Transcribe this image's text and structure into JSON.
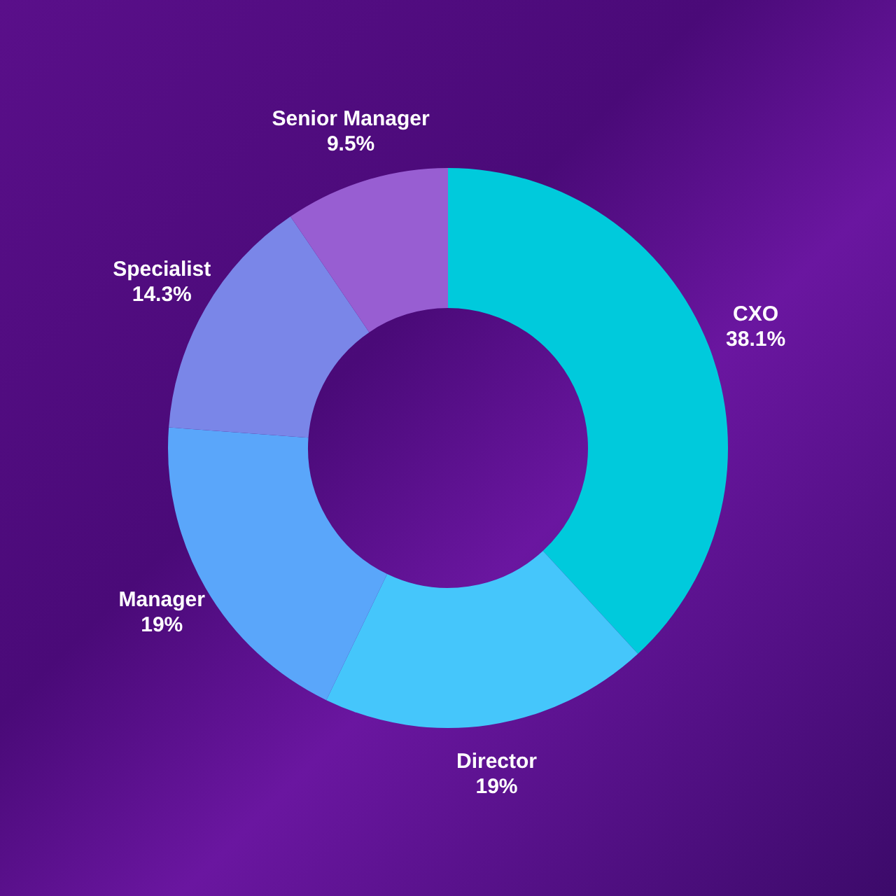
{
  "chart_data": {
    "type": "donut",
    "categories": [
      "CXO",
      "Director",
      "Manager",
      "Specialist",
      "Senior Manager"
    ],
    "values": [
      38.1,
      19,
      19,
      14.3,
      9.5
    ],
    "value_labels": [
      "38.1%",
      "19%",
      "19%",
      "14.3%",
      "9.5%"
    ],
    "colors": [
      "#00cadc",
      "#45c6fb",
      "#5aa6fa",
      "#7a86e8",
      "#985ed2"
    ],
    "legend": false
  }
}
